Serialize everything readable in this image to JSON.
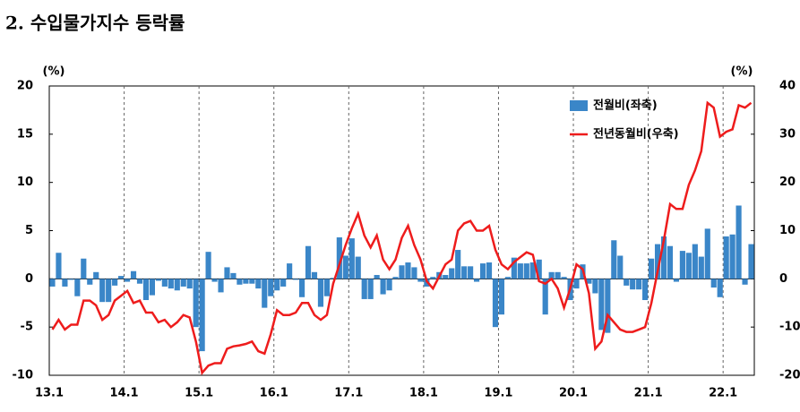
{
  "chart_data": {
    "type": "bar-line",
    "title": "2. 수입물가지수 등락률",
    "y_unit": "(%)",
    "y2_unit": "(%)",
    "categories": [
      "13.1",
      null,
      null,
      null,
      null,
      null,
      null,
      null,
      null,
      null,
      null,
      null,
      "14.1",
      null,
      null,
      null,
      null,
      null,
      null,
      null,
      null,
      null,
      null,
      null,
      "15.1",
      null,
      null,
      null,
      null,
      null,
      null,
      null,
      null,
      null,
      null,
      null,
      "16.1",
      null,
      null,
      null,
      null,
      null,
      null,
      null,
      null,
      null,
      null,
      null,
      "17.1",
      null,
      null,
      null,
      null,
      null,
      null,
      null,
      null,
      null,
      null,
      null,
      "18.1",
      null,
      null,
      null,
      null,
      null,
      null,
      null,
      null,
      null,
      null,
      null,
      "19.1",
      null,
      null,
      null,
      null,
      null,
      null,
      null,
      null,
      null,
      null,
      null,
      "20.1",
      null,
      null,
      null,
      null,
      null,
      null,
      null,
      null,
      null,
      null,
      null,
      "21.1",
      null,
      null,
      null,
      null,
      null,
      null,
      null,
      null,
      null,
      null,
      null,
      "22.1",
      null,
      null,
      null,
      null
    ],
    "series": [
      {
        "name": "전월비(좌축)",
        "type": "bar",
        "color": "#3a86c8",
        "values": [
          -0.8,
          2.7,
          -0.8,
          -0.1,
          -1.8,
          2.1,
          -0.6,
          0.7,
          -2.4,
          -2.4,
          -0.7,
          0.3,
          -0.3,
          0.8,
          -0.5,
          -2.2,
          -1.7,
          -0.2,
          -0.8,
          -1.0,
          -1.2,
          -0.8,
          -1.0,
          -5.0,
          -7.5,
          2.8,
          -0.3,
          -1.4,
          1.2,
          0.6,
          -0.6,
          -0.5,
          -0.5,
          -1.0,
          -3.0,
          -1.8,
          -1.2,
          -0.8,
          1.6,
          -0.1,
          -1.9,
          3.4,
          0.7,
          -2.9,
          -1.8,
          0.1,
          4.3,
          2.4,
          4.2,
          2.3,
          -2.1,
          -2.1,
          0.4,
          -1.6,
          -1.2,
          0.2,
          1.4,
          1.7,
          1.2,
          -0.3,
          -0.8,
          0.2,
          0.7,
          0.4,
          1.1,
          3.0,
          1.3,
          1.3,
          -0.3,
          1.6,
          1.7,
          -5.0,
          -3.7,
          0.2,
          2.2,
          1.6,
          1.6,
          1.7,
          2.0,
          -3.7,
          0.7,
          0.7,
          0.2,
          -2.2,
          -1.0,
          1.5,
          -0.5,
          -1.5,
          -5.3,
          -5.6,
          4.0,
          2.4,
          -0.7,
          -1.1,
          -1.1,
          -2.2,
          2.1,
          3.6,
          4.4,
          3.4,
          -0.3,
          2.9,
          2.7,
          3.6,
          2.3,
          5.2,
          -0.9,
          -1.9,
          4.4,
          4.6,
          7.6,
          -0.6,
          3.6
        ]
      },
      {
        "name": "전년동월비(우축)",
        "type": "line",
        "axis": "y2",
        "color": "#ee1c1c",
        "values": [
          -10.5,
          -8.5,
          -10.5,
          -9.5,
          -9.5,
          -4.5,
          -4.5,
          -5.5,
          -8.5,
          -7.5,
          -4.5,
          -3.5,
          -2.5,
          -5,
          -4.5,
          -7,
          -7,
          -9,
          -8.5,
          -10,
          -9,
          -7.5,
          -8,
          -13,
          -19.5,
          -18,
          -17.5,
          -17.5,
          -14.5,
          -14,
          -13.8,
          -13.5,
          -13,
          -15,
          -15.5,
          -11.5,
          -6.5,
          -7.5,
          -7.5,
          -7,
          -5,
          -5,
          -7.5,
          -8.5,
          -7.5,
          -1,
          3,
          7,
          10.5,
          13.5,
          9,
          6.5,
          9,
          4,
          2,
          4,
          8.5,
          11,
          7,
          4,
          -0.5,
          -2,
          0.5,
          3,
          4,
          10,
          11.5,
          12,
          10,
          10,
          11,
          6,
          3,
          2,
          3.5,
          4.5,
          5.5,
          5,
          -0.5,
          -1,
          0,
          -2,
          -6,
          -2,
          3,
          2,
          -3,
          -14.5,
          -13,
          -7.5,
          -9,
          -10.5,
          -11,
          -11,
          -10.5,
          -10,
          -5,
          1.5,
          8,
          15.5,
          14.5,
          14.5,
          19.5,
          22.5,
          26.5,
          36.5,
          35.5,
          29.5,
          30.5,
          31,
          36,
          35.5,
          36.5
        ]
      }
    ],
    "ylim": [
      -10,
      20
    ],
    "yticks": [
      -10,
      -5,
      0,
      5,
      10,
      15,
      20
    ],
    "y2lim": [
      -20,
      40
    ],
    "y2ticks": [
      -20,
      -10,
      0,
      10,
      20,
      30,
      40
    ],
    "grid": "x-dashed",
    "legend": "upper right"
  }
}
